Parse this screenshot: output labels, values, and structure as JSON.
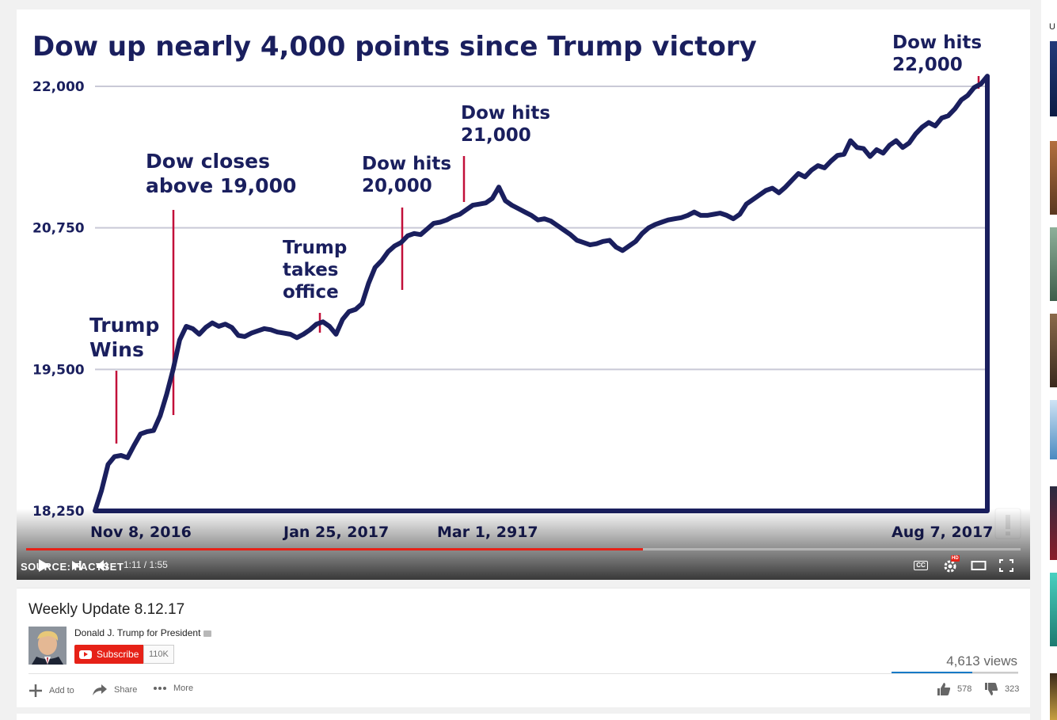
{
  "video": {
    "title": "Weekly Update 8.12.17",
    "time_current": "1:11",
    "time_total": "1:55",
    "progress": 0.62,
    "source_text": "SOURCE: FACTSET"
  },
  "channel": {
    "name": "Donald J. Trump for President",
    "subscribe_label": "Subscribe",
    "subscriber_count": "110K"
  },
  "stats": {
    "views": "4,613 views",
    "likes": "578",
    "dislikes": "323",
    "like_ratio": 0.64
  },
  "actions": {
    "add_to": "Add to",
    "share": "Share",
    "more": "More"
  },
  "sidebar": {
    "label": "U"
  },
  "controls": {
    "cc": "CC",
    "hd": "HD"
  },
  "colors": {
    "chart_line": "#1a1f5e",
    "marker": "#c2103a",
    "progress_played": "#e62117",
    "grid": "#c9c9d6"
  },
  "chart_data": {
    "type": "line",
    "title": "Dow up nearly 4,000 points since Trump victory",
    "y_ticks": [
      "22,000",
      "20,750",
      "19,500",
      "18,250"
    ],
    "y_tick_values": [
      22000,
      20750,
      19500,
      18250
    ],
    "ylim": [
      18250,
      22000
    ],
    "x_tick_labels": [
      "Nov 8, 2016",
      "Jan 25, 2017",
      "Mar 1, 2917",
      "Aug 7, 2017"
    ],
    "series": [
      {
        "values": [
          18250,
          18430,
          18660,
          18730,
          18740,
          18720,
          18830,
          18930,
          18950,
          18960,
          19090,
          19280,
          19500,
          19760,
          19880,
          19860,
          19810,
          19870,
          19910,
          19880,
          19900,
          19870,
          19800,
          19790,
          19820,
          19840,
          19860,
          19850,
          19830,
          19820,
          19810,
          19780,
          19810,
          19850,
          19900,
          19920,
          19880,
          19810,
          19940,
          20010,
          20030,
          20080,
          20260,
          20400,
          20460,
          20540,
          20590,
          20620,
          20680,
          20700,
          20690,
          20740,
          20790,
          20800,
          20820,
          20850,
          20870,
          20910,
          20950,
          20960,
          20970,
          21010,
          21110,
          20990,
          20950,
          20920,
          20890,
          20860,
          20820,
          20830,
          20810,
          20770,
          20730,
          20690,
          20640,
          20620,
          20600,
          20610,
          20630,
          20640,
          20580,
          20550,
          20590,
          20630,
          20700,
          20750,
          20780,
          20800,
          20820,
          20830,
          20840,
          20860,
          20890,
          20860,
          20860,
          20870,
          20880,
          20860,
          20830,
          20870,
          20960,
          21000,
          21040,
          21080,
          21100,
          21060,
          21110,
          21170,
          21230,
          21200,
          21260,
          21300,
          21280,
          21340,
          21390,
          21400,
          21520,
          21460,
          21450,
          21380,
          21440,
          21410,
          21480,
          21520,
          21460,
          21500,
          21580,
          21640,
          21680,
          21650,
          21720,
          21740,
          21800,
          21880,
          21920,
          21990,
          22020,
          22090
        ]
      }
    ],
    "annotations": [
      {
        "label": "Trump Wins",
        "lines": [
          "Trump",
          "Wins"
        ]
      },
      {
        "label": "Dow closes above 19,000",
        "lines": [
          "Dow closes",
          "above 19,000"
        ]
      },
      {
        "label": "Trump takes office",
        "lines": [
          "Trump",
          "takes",
          "office"
        ]
      },
      {
        "label": "Dow hits 20,000",
        "lines": [
          "Dow hits",
          "20,000"
        ]
      },
      {
        "label": "Dow hits 21,000",
        "lines": [
          "Dow hits",
          "21,000"
        ]
      },
      {
        "label": "Dow hits 22,000",
        "lines": [
          "Dow hits",
          "22,000"
        ]
      }
    ],
    "grid": true,
    "legend": "none"
  }
}
